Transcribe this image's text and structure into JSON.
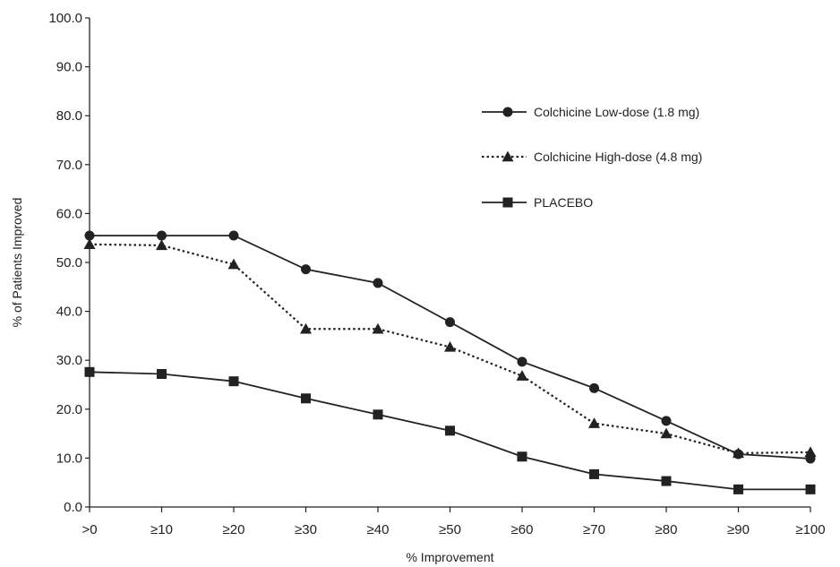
{
  "chart_data": {
    "type": "line",
    "categories": [
      ">0",
      "≥10",
      "≥20",
      "≥30",
      "≥40",
      "≥50",
      "≥60",
      "≥70",
      "≥80",
      "≥90",
      "≥100"
    ],
    "xlabel": "% Improvement",
    "ylabel": "% of Patients Improved",
    "ylim": [
      0,
      100
    ],
    "yticks": [
      "0.0",
      "10.0",
      "20.0",
      "30.0",
      "40.0",
      "50.0",
      "60.0",
      "70.0",
      "80.0",
      "90.0",
      "100.0"
    ],
    "legend_position": "right",
    "grid": false,
    "series": [
      {
        "name": "Colchicine Low-dose (1.8 mg)",
        "marker": "circle",
        "line_style": "solid",
        "color": "#222222",
        "values": [
          55.5,
          55.5,
          55.5,
          48.6,
          45.8,
          37.8,
          29.7,
          24.3,
          17.6,
          10.8,
          9.9
        ]
      },
      {
        "name": "Colchicine High-dose (4.8 mg)",
        "marker": "triangle",
        "line_style": "dotted",
        "color": "#222222",
        "values": [
          53.7,
          53.5,
          49.6,
          36.4,
          36.4,
          32.7,
          26.8,
          17.1,
          15.0,
          11.0,
          11.2
        ]
      },
      {
        "name": "PLACEBO",
        "marker": "square",
        "line_style": "solid",
        "color": "#222222",
        "values": [
          27.6,
          27.2,
          25.7,
          22.2,
          18.9,
          15.6,
          10.3,
          6.7,
          5.3,
          3.6,
          3.6
        ]
      }
    ]
  }
}
